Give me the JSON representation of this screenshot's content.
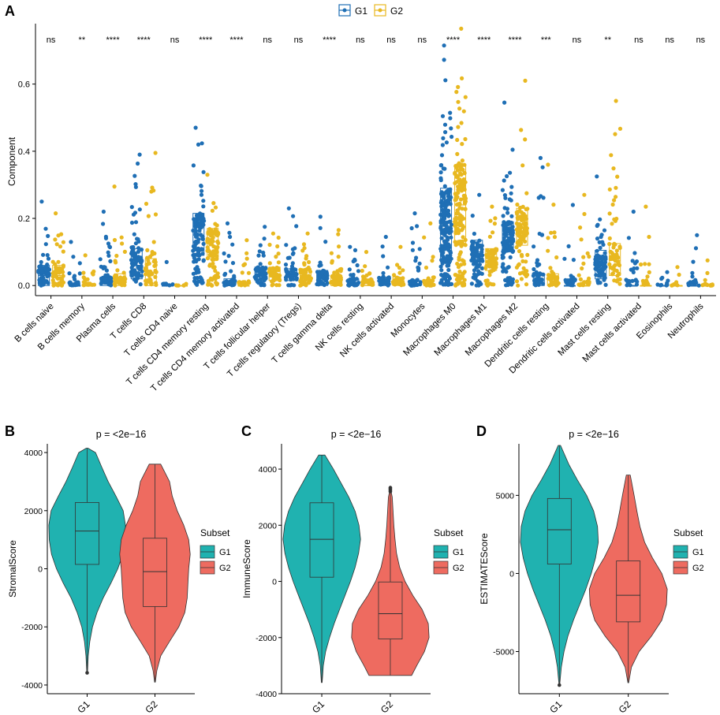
{
  "colors": {
    "g1_blue": "#1f6fb5",
    "g2_yellow": "#e8b820",
    "violin_teal": "#20b2b0",
    "violin_red": "#ee6b60",
    "text": "#000000",
    "axis": "#000000"
  },
  "chart_data": [
    {
      "panel": "A",
      "type": "scatter",
      "subtype": "box-with-jitter",
      "title": "",
      "xlabel": "",
      "ylabel": "Component",
      "ylim": [
        -0.03,
        0.78
      ],
      "yticks": [
        0.0,
        0.2,
        0.4,
        0.6
      ],
      "ytick_labels": [
        "0.0",
        "0.2",
        "0.4",
        "0.6"
      ],
      "legend_position": "top",
      "legend": [
        {
          "key": "G1",
          "label": "G1",
          "color_key": "g1_blue"
        },
        {
          "key": "G2",
          "label": "G2",
          "color_key": "g2_yellow"
        }
      ],
      "categories": [
        {
          "name": "B cells naive",
          "sig": "ns",
          "G1": {
            "q1": 0.0,
            "med": 0.03,
            "q3": 0.06,
            "max": 0.25,
            "n": 55
          },
          "G2": {
            "q1": 0.0,
            "med": 0.03,
            "q3": 0.06,
            "max": 0.215,
            "n": 50
          }
        },
        {
          "name": "B cells memory",
          "sig": "**",
          "G1": {
            "q1": 0.0,
            "med": 0.0,
            "q3": 0.0,
            "max": 0.13,
            "n": 28
          },
          "G2": {
            "q1": 0.0,
            "med": 0.0,
            "q3": 0.0,
            "max": 0.09,
            "n": 22
          }
        },
        {
          "name": "Plasma cells",
          "sig": "****",
          "G1": {
            "q1": 0.0,
            "med": 0.005,
            "q3": 0.025,
            "max": 0.22,
            "n": 50
          },
          "G2": {
            "q1": 0.0,
            "med": 0.01,
            "q3": 0.035,
            "max": 0.295,
            "n": 45
          }
        },
        {
          "name": "T cells CD8",
          "sig": "****",
          "G1": {
            "q1": 0.02,
            "med": 0.06,
            "q3": 0.11,
            "max": 0.39,
            "n": 80
          },
          "G2": {
            "q1": 0.0,
            "med": 0.04,
            "q3": 0.08,
            "max": 0.395,
            "n": 60
          }
        },
        {
          "name": "T cells CD4 naive",
          "sig": "ns",
          "G1": {
            "q1": 0.0,
            "med": 0.0,
            "q3": 0.0,
            "max": 0.07,
            "n": 8
          },
          "G2": {
            "q1": 0.0,
            "med": 0.0,
            "q3": 0.0,
            "max": 0.005,
            "n": 6
          }
        },
        {
          "name": "T cells CD4 memory resting",
          "sig": "****",
          "G1": {
            "q1": 0.09,
            "med": 0.15,
            "q3": 0.215,
            "max": 0.47,
            "n": 120
          },
          "G2": {
            "q1": 0.08,
            "med": 0.13,
            "q3": 0.17,
            "max": 0.33,
            "n": 95
          }
        },
        {
          "name": "T cells CD4 memory activated",
          "sig": "****",
          "G1": {
            "q1": 0.0,
            "med": 0.0,
            "q3": 0.02,
            "max": 0.185,
            "n": 40
          },
          "G2": {
            "q1": 0.0,
            "med": 0.0,
            "q3": 0.0,
            "max": 0.135,
            "n": 25
          }
        },
        {
          "name": "T cells follicular helper",
          "sig": "ns",
          "G1": {
            "q1": 0.015,
            "med": 0.035,
            "q3": 0.055,
            "max": 0.175,
            "n": 55
          },
          "G2": {
            "q1": 0.015,
            "med": 0.035,
            "q3": 0.055,
            "max": 0.155,
            "n": 50
          }
        },
        {
          "name": "T cells regulatory (Tregs)",
          "sig": "ns",
          "G1": {
            "q1": 0.015,
            "med": 0.03,
            "q3": 0.05,
            "max": 0.23,
            "n": 55
          },
          "G2": {
            "q1": 0.015,
            "med": 0.03,
            "q3": 0.05,
            "max": 0.155,
            "n": 50
          }
        },
        {
          "name": "T cells gamma delta",
          "sig": "****",
          "G1": {
            "q1": 0.0,
            "med": 0.015,
            "q3": 0.045,
            "max": 0.205,
            "n": 55
          },
          "G2": {
            "q1": 0.0,
            "med": 0.0,
            "q3": 0.03,
            "max": 0.165,
            "n": 45
          }
        },
        {
          "name": "NK cells resting",
          "sig": "ns",
          "G1": {
            "q1": 0.0,
            "med": 0.0,
            "q3": 0.02,
            "max": 0.115,
            "n": 35
          },
          "G2": {
            "q1": 0.0,
            "med": 0.0,
            "q3": 0.02,
            "max": 0.1,
            "n": 30
          }
        },
        {
          "name": "NK cells activated",
          "sig": "ns",
          "G1": {
            "q1": 0.0,
            "med": 0.01,
            "q3": 0.025,
            "max": 0.145,
            "n": 40
          },
          "G2": {
            "q1": 0.0,
            "med": 0.01,
            "q3": 0.025,
            "max": 0.115,
            "n": 35
          }
        },
        {
          "name": "Monocytes",
          "sig": "ns",
          "G1": {
            "q1": 0.0,
            "med": 0.0,
            "q3": 0.005,
            "max": 0.215,
            "n": 35
          },
          "G2": {
            "q1": 0.0,
            "med": 0.0,
            "q3": 0.005,
            "max": 0.185,
            "n": 30
          }
        },
        {
          "name": "Macrophages M0",
          "sig": "****",
          "G1": {
            "q1": 0.07,
            "med": 0.16,
            "q3": 0.29,
            "max": 0.715,
            "n": 190
          },
          "G2": {
            "q1": 0.12,
            "med": 0.24,
            "q3": 0.36,
            "max": 0.765,
            "n": 175
          }
        },
        {
          "name": "Macrophages M1",
          "sig": "****",
          "G1": {
            "q1": 0.07,
            "med": 0.1,
            "q3": 0.135,
            "max": 0.27,
            "n": 80
          },
          "G2": {
            "q1": 0.045,
            "med": 0.08,
            "q3": 0.11,
            "max": 0.235,
            "n": 65
          }
        },
        {
          "name": "Macrophages M2",
          "sig": "****",
          "G1": {
            "q1": 0.1,
            "med": 0.145,
            "q3": 0.19,
            "max": 0.545,
            "n": 120
          },
          "G2": {
            "q1": 0.12,
            "med": 0.17,
            "q3": 0.23,
            "max": 0.61,
            "n": 110
          }
        },
        {
          "name": "Dendritic cells resting",
          "sig": "***",
          "G1": {
            "q1": 0.0,
            "med": 0.015,
            "q3": 0.035,
            "max": 0.38,
            "n": 50
          },
          "G2": {
            "q1": 0.0,
            "med": 0.0,
            "q3": 0.035,
            "max": 0.36,
            "n": 40
          }
        },
        {
          "name": "Dendritic cells activated",
          "sig": "ns",
          "G1": {
            "q1": 0.0,
            "med": 0.0,
            "q3": 0.0,
            "max": 0.24,
            "n": 30
          },
          "G2": {
            "q1": 0.0,
            "med": 0.0,
            "q3": 0.0,
            "max": 0.27,
            "n": 25
          }
        },
        {
          "name": "Mast cells resting",
          "sig": "**",
          "G1": {
            "q1": 0.02,
            "med": 0.06,
            "q3": 0.105,
            "max": 0.325,
            "n": 70
          },
          "G2": {
            "q1": 0.03,
            "med": 0.075,
            "q3": 0.125,
            "max": 0.55,
            "n": 60
          }
        },
        {
          "name": "Mast cells activated",
          "sig": "ns",
          "G1": {
            "q1": 0.0,
            "med": 0.0,
            "q3": 0.0,
            "max": 0.22,
            "n": 25
          },
          "G2": {
            "q1": 0.0,
            "med": 0.0,
            "q3": 0.0,
            "max": 0.235,
            "n": 15
          }
        },
        {
          "name": "Eosinophils",
          "sig": "ns",
          "G1": {
            "q1": 0.0,
            "med": 0.0,
            "q3": 0.0,
            "max": 0.04,
            "n": 10
          },
          "G2": {
            "q1": 0.0,
            "med": 0.0,
            "q3": 0.0,
            "max": 0.055,
            "n": 8
          }
        },
        {
          "name": "Neutrophils",
          "sig": "ns",
          "G1": {
            "q1": 0.0,
            "med": 0.0,
            "q3": 0.0,
            "max": 0.15,
            "n": 20
          },
          "G2": {
            "q1": 0.0,
            "med": 0.0,
            "q3": 0.0,
            "max": 0.075,
            "n": 15
          }
        }
      ]
    },
    {
      "panel": "B",
      "type": "violin",
      "title": "p = <2e−16",
      "xlabel": "",
      "ylabel": "StromalScore",
      "ylim": [
        -4300,
        4300
      ],
      "yticks": [
        -4000,
        -2000,
        0,
        2000,
        4000
      ],
      "ytick_labels": [
        "-4000",
        "-2000",
        "0",
        "2000",
        "4000"
      ],
      "categories": [
        "G1",
        "G2"
      ],
      "legend_title": "Subset",
      "legend": [
        "G1",
        "G2"
      ],
      "legend_position": "right",
      "groups": [
        {
          "name": "G1",
          "color_key": "violin_teal",
          "min": -3550,
          "max": 4150,
          "q1": 150,
          "median": 1300,
          "q3": 2280,
          "density": [
            [
              -3550,
              0.01
            ],
            [
              -3000,
              0.03
            ],
            [
              -2500,
              0.07
            ],
            [
              -2000,
              0.14
            ],
            [
              -1500,
              0.26
            ],
            [
              -1000,
              0.42
            ],
            [
              -500,
              0.62
            ],
            [
              0,
              0.8
            ],
            [
              500,
              0.93
            ],
            [
              1000,
              0.99
            ],
            [
              1500,
              1.0
            ],
            [
              2000,
              0.94
            ],
            [
              2500,
              0.75
            ],
            [
              3000,
              0.55
            ],
            [
              3500,
              0.38
            ],
            [
              4000,
              0.22
            ],
            [
              4150,
              0.02
            ]
          ],
          "outliers": [
            -3580
          ]
        },
        {
          "name": "G2",
          "color_key": "violin_red",
          "min": -3900,
          "max": 3600,
          "q1": -1300,
          "median": -100,
          "q3": 1050,
          "density": [
            [
              -3900,
              0.01
            ],
            [
              -3500,
              0.05
            ],
            [
              -3000,
              0.15
            ],
            [
              -2500,
              0.38
            ],
            [
              -2000,
              0.62
            ],
            [
              -1500,
              0.78
            ],
            [
              -1000,
              0.84
            ],
            [
              -500,
              0.86
            ],
            [
              0,
              0.88
            ],
            [
              500,
              0.92
            ],
            [
              1000,
              0.88
            ],
            [
              1500,
              0.75
            ],
            [
              2000,
              0.58
            ],
            [
              2500,
              0.45
            ],
            [
              3000,
              0.38
            ],
            [
              3600,
              0.15
            ]
          ],
          "outliers": []
        }
      ]
    },
    {
      "panel": "C",
      "type": "violin",
      "title": "p = <2e−16",
      "xlabel": "",
      "ylabel": "ImmuneScore",
      "ylim": [
        -4000,
        4900
      ],
      "yticks": [
        -4000,
        -2000,
        0,
        2000,
        4000
      ],
      "ytick_labels": [
        "-4000",
        "-2000",
        "0",
        "2000",
        "4000"
      ],
      "categories": [
        "G1",
        "G2"
      ],
      "legend_title": "Subset",
      "legend": [
        "G1",
        "G2"
      ],
      "legend_position": "right",
      "groups": [
        {
          "name": "G1",
          "color_key": "violin_teal",
          "min": -3600,
          "max": 4500,
          "q1": 150,
          "median": 1500,
          "q3": 2800,
          "density": [
            [
              -3600,
              0.01
            ],
            [
              -3000,
              0.04
            ],
            [
              -2500,
              0.1
            ],
            [
              -2000,
              0.2
            ],
            [
              -1500,
              0.32
            ],
            [
              -1000,
              0.46
            ],
            [
              -500,
              0.6
            ],
            [
              0,
              0.74
            ],
            [
              500,
              0.86
            ],
            [
              1000,
              0.95
            ],
            [
              1500,
              1.0
            ],
            [
              2000,
              0.96
            ],
            [
              2500,
              0.86
            ],
            [
              3000,
              0.7
            ],
            [
              3500,
              0.5
            ],
            [
              4000,
              0.3
            ],
            [
              4500,
              0.08
            ]
          ],
          "outliers": []
        },
        {
          "name": "G2",
          "color_key": "violin_red",
          "min": -3350,
          "max": 3200,
          "q1": -2050,
          "median": -1150,
          "q3": -20,
          "density": [
            [
              -3350,
              0.55
            ],
            [
              -3000,
              0.68
            ],
            [
              -2500,
              0.88
            ],
            [
              -2000,
              1.0
            ],
            [
              -1500,
              0.98
            ],
            [
              -1000,
              0.82
            ],
            [
              -500,
              0.58
            ],
            [
              0,
              0.38
            ],
            [
              500,
              0.24
            ],
            [
              1000,
              0.16
            ],
            [
              1500,
              0.12
            ],
            [
              2000,
              0.09
            ],
            [
              2500,
              0.07
            ],
            [
              3000,
              0.05
            ],
            [
              3200,
              0.02
            ]
          ],
          "outliers": [
            3200,
            3250,
            3300,
            3340
          ]
        }
      ]
    },
    {
      "panel": "D",
      "type": "violin",
      "title": "p = <2e−16",
      "xlabel": "",
      "ylabel": "ESTIMATEScore",
      "ylim": [
        -7700,
        8300
      ],
      "yticks": [
        -5000,
        0,
        5000
      ],
      "ytick_labels": [
        "-5000",
        "0",
        "5000"
      ],
      "categories": [
        "G1",
        "G2"
      ],
      "legend_title": "Subset",
      "legend": [
        "G1",
        "G2"
      ],
      "legend_position": "right",
      "groups": [
        {
          "name": "G1",
          "color_key": "violin_teal",
          "min": -7100,
          "max": 8200,
          "q1": 600,
          "median": 2800,
          "q3": 4800,
          "density": [
            [
              -7100,
              0.01
            ],
            [
              -6000,
              0.05
            ],
            [
              -5000,
              0.12
            ],
            [
              -4000,
              0.22
            ],
            [
              -3000,
              0.36
            ],
            [
              -2000,
              0.52
            ],
            [
              -1000,
              0.68
            ],
            [
              0,
              0.82
            ],
            [
              1000,
              0.93
            ],
            [
              2000,
              1.0
            ],
            [
              3000,
              0.98
            ],
            [
              4000,
              0.88
            ],
            [
              5000,
              0.7
            ],
            [
              6000,
              0.46
            ],
            [
              7000,
              0.24
            ],
            [
              8200,
              0.03
            ]
          ],
          "outliers": [
            -7150
          ]
        },
        {
          "name": "G2",
          "color_key": "violin_red",
          "min": -7000,
          "max": 6300,
          "q1": -3100,
          "median": -1400,
          "q3": 800,
          "density": [
            [
              -7000,
              0.01
            ],
            [
              -6000,
              0.08
            ],
            [
              -5000,
              0.28
            ],
            [
              -4000,
              0.6
            ],
            [
              -3000,
              0.86
            ],
            [
              -2000,
              0.98
            ],
            [
              -1000,
              1.0
            ],
            [
              0,
              0.86
            ],
            [
              1000,
              0.62
            ],
            [
              2000,
              0.42
            ],
            [
              3000,
              0.3
            ],
            [
              4000,
              0.22
            ],
            [
              5000,
              0.15
            ],
            [
              6300,
              0.05
            ]
          ],
          "outliers": []
        }
      ]
    }
  ]
}
